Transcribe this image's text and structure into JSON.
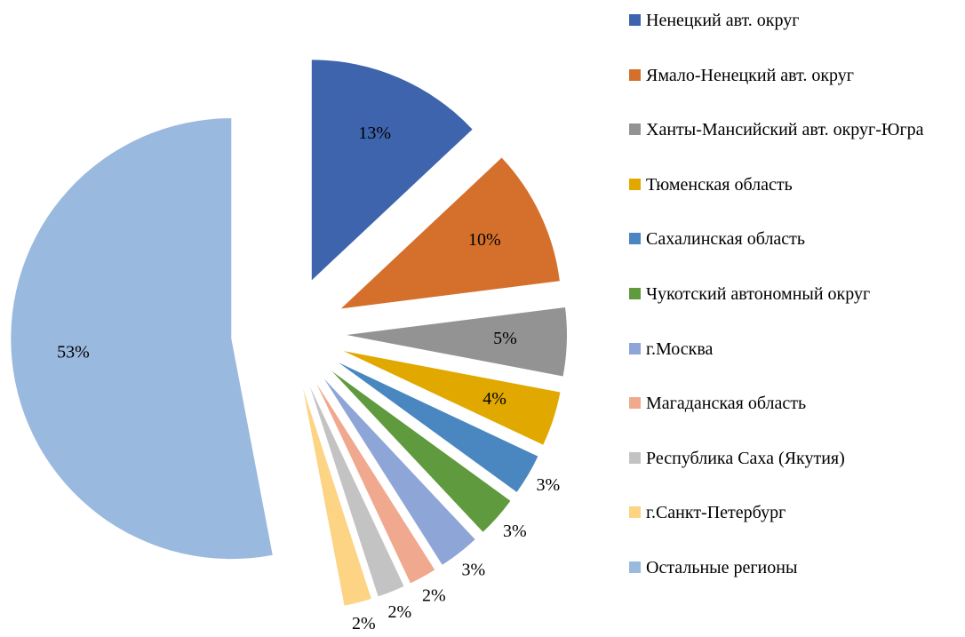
{
  "chart_data": {
    "type": "pie",
    "categories": [
      "Ненецкий авт. округ",
      "Ямало-Ненецкий авт. округ",
      "Ханты-Мансийский авт. округ-Югра",
      "Тюменская область",
      "Сахалинская область",
      "Чукотский автономный округ",
      "г.Москва",
      "Магаданская область",
      "Республика Саха (Якутия)",
      "г.Санкт-Петербург",
      "Остальные регионы"
    ],
    "values": [
      13,
      10,
      5,
      4,
      3,
      3,
      3,
      2,
      2,
      2,
      53
    ],
    "value_labels": [
      "13%",
      "10%",
      "5%",
      "4%",
      "3%",
      "3%",
      "3%",
      "2%",
      "2%",
      "2%",
      "53%"
    ],
    "colors": [
      "#3d64ad",
      "#d4702b",
      "#939393",
      "#e1a800",
      "#4a86bf",
      "#5f9a3e",
      "#8ea5d8",
      "#f0a88e",
      "#c3c3c3",
      "#fdd384",
      "#9ab9df"
    ],
    "legend": "right"
  }
}
